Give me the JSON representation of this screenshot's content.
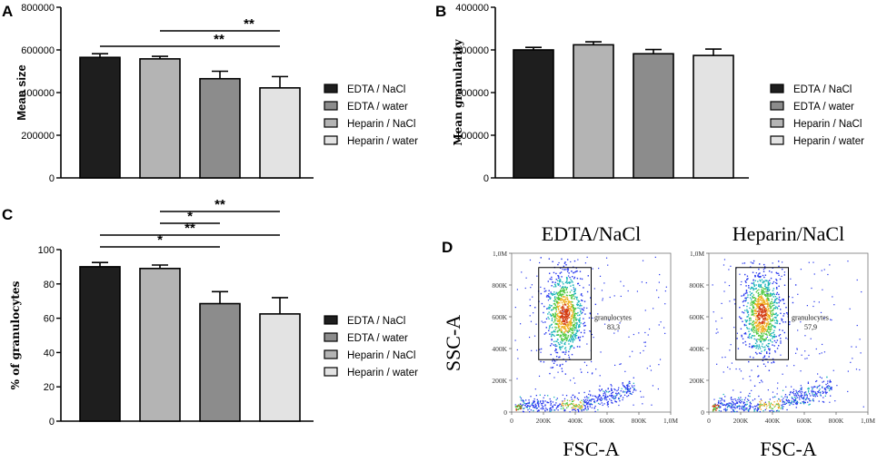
{
  "legend": {
    "items": [
      {
        "label": "EDTA / NaCl",
        "color": "#1e1e1e"
      },
      {
        "label": "EDTA / water",
        "color": "#8c8c8c"
      },
      {
        "label": "Heparin / NaCl",
        "color": "#b4b4b4"
      },
      {
        "label": "Heparin / water",
        "color": "#e3e3e3"
      }
    ]
  },
  "chart_data": [
    {
      "panel": "A",
      "type": "bar",
      "categories": [
        "EDTA / NaCl",
        "Heparin / NaCl",
        "EDTA / water",
        "Heparin / water"
      ],
      "values": [
        565000,
        558000,
        465000,
        422000
      ],
      "errors": [
        17000,
        12000,
        35000,
        53000
      ],
      "bar_colors": [
        "#1e1e1e",
        "#b4b4b4",
        "#8c8c8c",
        "#e3e3e3"
      ],
      "ylabel": "Mean size",
      "ylim": [
        0,
        800000
      ],
      "yticks": [
        0,
        200000,
        400000,
        600000,
        800000
      ],
      "ytick_labels": [
        "0",
        "200000",
        "400000",
        "600000",
        "800000"
      ],
      "significance": [
        {
          "from": 1,
          "to": 3,
          "label": "**"
        },
        {
          "from": 0,
          "to": 3,
          "label": "**"
        }
      ]
    },
    {
      "panel": "B",
      "type": "bar",
      "categories": [
        "EDTA / NaCl",
        "Heparin / NaCl",
        "EDTA / water",
        "Heparin / water"
      ],
      "values": [
        300000,
        312000,
        291000,
        287000
      ],
      "errors": [
        6000,
        7000,
        10000,
        15000
      ],
      "bar_colors": [
        "#1e1e1e",
        "#b4b4b4",
        "#8c8c8c",
        "#e3e3e3"
      ],
      "ylabel": "Mean granularity",
      "ylim": [
        0,
        400000
      ],
      "yticks": [
        0,
        100000,
        200000,
        300000,
        400000
      ],
      "ytick_labels": [
        "0",
        "100000",
        "200000",
        "300000",
        "400000"
      ],
      "significance": []
    },
    {
      "panel": "C",
      "type": "bar",
      "categories": [
        "EDTA / NaCl",
        "Heparin / NaCl",
        "EDTA / water",
        "Heparin / water"
      ],
      "values": [
        90,
        89,
        68.5,
        62.5
      ],
      "errors": [
        2.5,
        2,
        7,
        9.5
      ],
      "bar_colors": [
        "#1e1e1e",
        "#b4b4b4",
        "#8c8c8c",
        "#e3e3e3"
      ],
      "ylabel": "% of granulocytes",
      "ylim": [
        0,
        100
      ],
      "yticks": [
        0,
        20,
        40,
        60,
        80,
        100
      ],
      "ytick_labels": [
        "0",
        "20",
        "40",
        "60",
        "80",
        "100"
      ],
      "significance": [
        {
          "from": 1,
          "to": 3,
          "label": "**"
        },
        {
          "from": 1,
          "to": 2,
          "label": "*"
        },
        {
          "from": 0,
          "to": 3,
          "label": "**"
        },
        {
          "from": 0,
          "to": 2,
          "label": "*"
        }
      ]
    },
    {
      "panel": "D",
      "type": "scatter",
      "subtype": "flow-cytometry-density",
      "xlabel": "FSC-A",
      "ylabel": "SSC-A",
      "xlim": [
        0,
        1000000
      ],
      "ylim": [
        0,
        1000000
      ],
      "xtick_labels": [
        "0",
        "200K",
        "400K",
        "600K",
        "800K",
        "1,0M"
      ],
      "ytick_labels": [
        "0",
        "200K",
        "400K",
        "600K",
        "800K",
        "1,0M"
      ],
      "plots": [
        {
          "title": "EDTA/NaCl",
          "gate_label": "granulocytes",
          "gate_value": "83,3"
        },
        {
          "title": "Heparin/NaCl",
          "gate_label": "granulocytes",
          "gate_value": "57,9"
        }
      ]
    }
  ]
}
